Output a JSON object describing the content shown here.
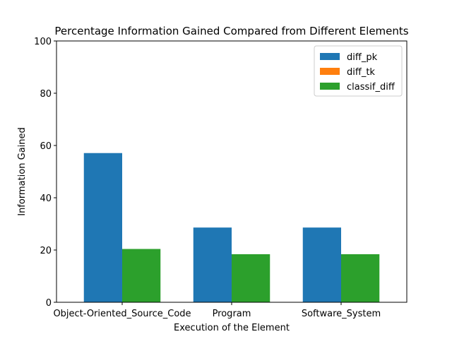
{
  "chart_data": {
    "type": "bar",
    "title": "Percentage Information Gained Compared from Different Elements",
    "xlabel": "Execution of the Element",
    "ylabel": "Information Gained",
    "categories": [
      "Object-Oriented_Source_Code",
      "Program",
      "Software_System"
    ],
    "series": [
      {
        "name": "diff_pk",
        "color": "#1f77b4",
        "values": [
          57.1,
          28.6,
          28.6
        ]
      },
      {
        "name": "diff_tk",
        "color": "#ff7f0e",
        "values": [
          0,
          0,
          0
        ]
      },
      {
        "name": "classif_diff",
        "color": "#2ca02c",
        "values": [
          20.4,
          18.4,
          18.4
        ]
      }
    ],
    "ylim": [
      0,
      100
    ],
    "yticks": [
      0,
      20,
      40,
      60,
      80,
      100
    ],
    "grid": false,
    "legend_position": "top-right"
  }
}
